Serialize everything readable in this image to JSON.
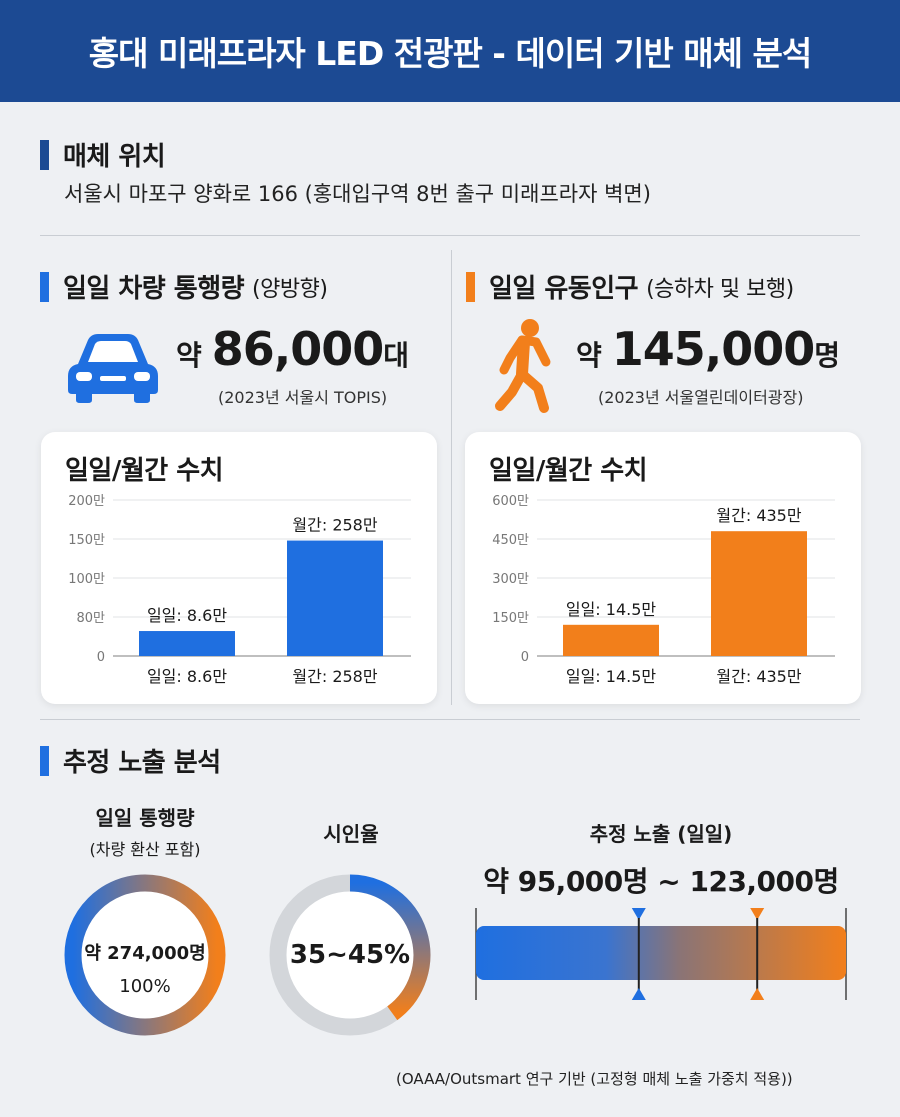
{
  "header": {
    "title": "홍대 미래프라자 LED 전광판 - 데이터 기반 매체 분석"
  },
  "colors": {
    "blue": "#1f6fe0",
    "orange": "#f27f1b",
    "navy": "#1c4a93",
    "grey": "#d3d6da"
  },
  "location": {
    "title": "매체 위치",
    "address": "서울시 마포구 양화로 166 (홍대입구역 8번 출구 미래프라자 벽면)"
  },
  "vehicle": {
    "title": "일일 차량 통행량",
    "subtitle": "(양방향)",
    "icon": "car-icon",
    "prefix": "약",
    "value": "86,000",
    "unit": "대",
    "source": "(2023년 서울시 TOPIS)"
  },
  "pedestrian": {
    "title": "일일 유동인구",
    "subtitle": "(승하차 및 보행)",
    "icon": "walking-person-icon",
    "prefix": "약",
    "value": "145,000",
    "unit": "명",
    "source": "(2023년 서울열린데이터광장)"
  },
  "chart_data": [
    {
      "type": "bar",
      "title": "일일/월간 수치",
      "yticks": [
        "0",
        "80만",
        "100만",
        "150만",
        "200만"
      ],
      "categories": [
        "일일: 8.6만",
        "월간: 258만"
      ],
      "values": [
        8.6,
        258
      ],
      "data_labels": [
        "일일: 8.6만",
        "월간: 258만"
      ],
      "bar_level": [
        0.16,
        0.74
      ],
      "color": "#1f6fe0",
      "grid": true
    },
    {
      "type": "bar",
      "title": "일일/월간 수치",
      "yticks": [
        "0",
        "150만",
        "300만",
        "450만",
        "600만"
      ],
      "categories": [
        "일일: 14.5만",
        "월간: 435만"
      ],
      "values": [
        14.5,
        435
      ],
      "data_labels": [
        "일일: 14.5만",
        "월간: 435만"
      ],
      "bar_level": [
        0.2,
        0.8
      ],
      "color": "#f27f1b",
      "grid": true
    }
  ],
  "exposure": {
    "title": "추정 노출 분석",
    "traffic": {
      "title": "일일 통행량",
      "subtitle": "(차량 환산 포함)",
      "value": "약 274,000명",
      "percent": "100%"
    },
    "attention": {
      "title": "시인율",
      "value": "35~45%",
      "fill_start": 0.35,
      "fill_end": 0.45
    },
    "estimate": {
      "title": "추정 노출 (일일)",
      "range": "약 95,000명 ~ 123,000명",
      "low_marker": 0.44,
      "high_marker": 0.76
    }
  },
  "footnote": "(OAAA/Outsmart 연구 기반 (고정형 매체 노출 가중치 적용))"
}
